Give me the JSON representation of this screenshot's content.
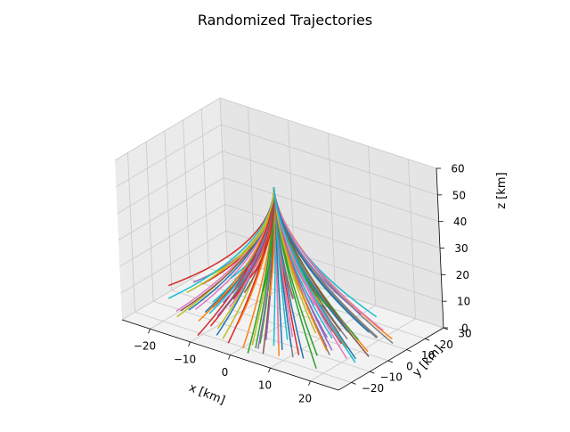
{
  "chart_data": {
    "type": "line3d",
    "title": "Randomized Trajectories",
    "xlabel": "x [km]",
    "ylabel": "y [km]",
    "zlabel": "z [km]",
    "xlim": [
      -27,
      27
    ],
    "ylim": [
      -27,
      30
    ],
    "zlim": [
      0,
      60
    ],
    "x_ticks": [
      -20,
      -10,
      0,
      10,
      20
    ],
    "y_ticks": [
      -20,
      -10,
      0,
      10,
      20,
      30
    ],
    "z_ticks": [
      0,
      10,
      20,
      30,
      40,
      50,
      60
    ],
    "grid": true,
    "legend": "none",
    "trajectories": {
      "count": 100,
      "start": [
        0,
        0,
        52
      ],
      "end_altitude_range": [
        0,
        4
      ],
      "max_spread_km": 27
    },
    "palette": [
      "#1f77b4",
      "#ff7f0e",
      "#2ca02c",
      "#d62728",
      "#9467bd",
      "#8c564b",
      "#e377c2",
      "#7f7f7f",
      "#bcbd22",
      "#17becf"
    ]
  }
}
